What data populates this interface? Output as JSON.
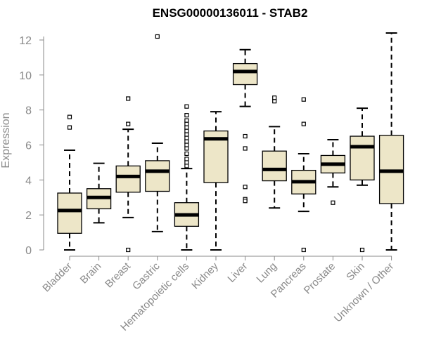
{
  "chart_data": {
    "type": "boxplot",
    "title": "ENSG00000136011 - STAB2",
    "xlabel": "",
    "ylabel": "Expression",
    "ylim": [
      0,
      12.2
    ],
    "yticks": [
      0,
      2,
      4,
      6,
      8,
      10,
      12
    ],
    "colors": {
      "box_fill": "#ede6c8",
      "box_stroke": "#000000",
      "median": "#000000",
      "axis": "#8a8a8a"
    },
    "categories": [
      "Bladder",
      "Brain",
      "Breast",
      "Gastric",
      "Hematopoietic cells",
      "Kidney",
      "Liver",
      "Lung",
      "Pancreas",
      "Prostate",
      "Skin",
      "Unknown / Other"
    ],
    "boxes": [
      {
        "min": 0.0,
        "q1": 0.95,
        "median": 2.25,
        "q3": 3.25,
        "max": 5.7,
        "outliers": [
          7.0,
          7.6
        ]
      },
      {
        "min": 1.55,
        "q1": 2.35,
        "median": 3.0,
        "q3": 3.5,
        "max": 4.95,
        "outliers": []
      },
      {
        "min": 1.85,
        "q1": 3.3,
        "median": 4.2,
        "q3": 4.8,
        "max": 6.9,
        "outliers": [
          0.0,
          7.2,
          8.65
        ]
      },
      {
        "min": 1.05,
        "q1": 3.35,
        "median": 4.5,
        "q3": 5.1,
        "max": 6.1,
        "outliers": [
          12.2
        ]
      },
      {
        "min": 0.0,
        "q1": 1.35,
        "median": 2.0,
        "q3": 2.7,
        "max": 4.65,
        "outliers": [
          4.8,
          5.0,
          5.2,
          5.5,
          5.8,
          6.0,
          6.2,
          6.4,
          6.6,
          6.8,
          7.0,
          7.2,
          7.4,
          7.7,
          8.2
        ]
      },
      {
        "min": 0.0,
        "q1": 3.85,
        "median": 6.35,
        "q3": 6.8,
        "max": 7.9,
        "outliers": []
      },
      {
        "min": 8.2,
        "q1": 9.45,
        "median": 10.2,
        "q3": 10.65,
        "max": 11.45,
        "outliers": [
          6.5,
          5.8,
          3.6,
          2.9,
          2.8
        ]
      },
      {
        "min": 2.4,
        "q1": 3.95,
        "median": 4.6,
        "q3": 5.65,
        "max": 7.05,
        "outliers": [
          8.5,
          8.7
        ]
      },
      {
        "min": 2.2,
        "q1": 3.2,
        "median": 3.9,
        "q3": 4.55,
        "max": 5.5,
        "outliers": [
          0.0,
          7.2,
          8.6
        ]
      },
      {
        "min": 3.6,
        "q1": 4.4,
        "median": 4.9,
        "q3": 5.4,
        "max": 6.3,
        "outliers": [
          2.7
        ]
      },
      {
        "min": 3.7,
        "q1": 4.0,
        "median": 5.9,
        "q3": 6.5,
        "max": 8.1,
        "outliers": [
          0.0
        ]
      },
      {
        "min": 0.0,
        "q1": 2.65,
        "median": 4.5,
        "q3": 6.55,
        "max": 12.4,
        "outliers": []
      }
    ]
  }
}
